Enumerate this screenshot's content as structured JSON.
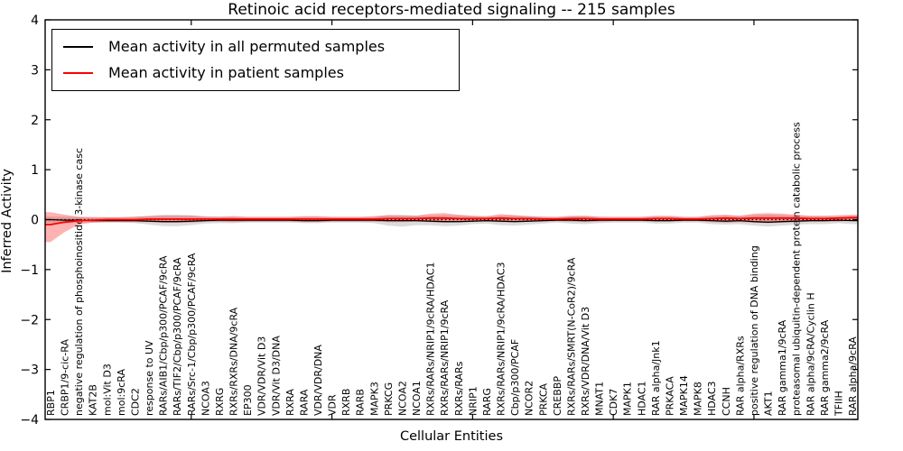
{
  "chart_data": {
    "type": "line",
    "title": "Retinoic acid receptors-mediated signaling -- 215 samples",
    "xlabel": "Cellular Entities",
    "ylabel": "Inferred Activity",
    "ylim": [
      -4,
      4
    ],
    "yticks": [
      4,
      3,
      2,
      1,
      0,
      -1,
      -2,
      -3,
      -4
    ],
    "grid": false,
    "legend_position": "upper left",
    "zero_reference_line": "dotted black line at y=0",
    "x_tick_label_rotation": 90,
    "categories": [
      "RBP1",
      "CRBP1/9-cic-RA",
      "negative regulation of phosphoinositide 3-kinase casc",
      "KAT2B",
      "mol:Vit D3",
      "mol:9cRA",
      "CDC2",
      "response to UV",
      "RARs/AIB1/Cbp/p300/PCAF/9cRA",
      "RARs/TIF2/Cbp/p300/PCAF/9cRA",
      "RARs/Src-1/Cbp/p300/PCAF/9cRA",
      "NCOA3",
      "RXRG",
      "RXRs/RXRs/DNA/9cRA",
      "EP300",
      "VDR/VDR/Vit D3",
      "VDR/Vit D3/DNA",
      "RXRA",
      "RARA",
      "VDR/VDR/DNA",
      "VDR",
      "RXRB",
      "RARB",
      "MAPK3",
      "PRKCG",
      "NCOA2",
      "NCOA1",
      "RXRs/RARs/NRIP1/9cRA/HDAC1",
      "RXRs/RARs/NRIP1/9cRA",
      "RXRs/RARs",
      "NRIP1",
      "RARG",
      "RXRs/RARs/NRIP1/9cRA/HDAC3",
      "Cbp/p300/PCAF",
      "NCOR2",
      "PRKCA",
      "CREBBP",
      "RXRs/RARs/SMRT(N-CoR2)/9cRA",
      "RXRs/VDR/DNA/Vit D3",
      "MNAT1",
      "CDK7",
      "MAPK1",
      "HDAC1",
      "RAR alpha/Jnk1",
      "PRKACA",
      "MAPK14",
      "MAPK8",
      "HDAC3",
      "CCNH",
      "RAR alpha/RXRs",
      "positive regulation of DNA binding",
      "AKT1",
      "RAR gamma1/9cRA",
      "proteasomal ubiquitin-dependent protein catabolic process",
      "RAR alpha/9cRA/Cyclin H",
      "RAR gamma2/9cRA",
      "TFIIH",
      "RAR alpha/9cRA"
    ],
    "series": [
      {
        "name": "Mean activity in all permuted samples",
        "color": "#000000",
        "band_color": "#999999",
        "band_opacity": 0.35,
        "values": [
          0,
          -0.01,
          -0.01,
          -0.02,
          -0.02,
          -0.02,
          -0.02,
          -0.03,
          -0.04,
          -0.04,
          -0.03,
          -0.02,
          -0.01,
          -0.01,
          -0.01,
          -0.01,
          -0.01,
          -0.01,
          -0.02,
          -0.02,
          -0.01,
          -0.01,
          -0.01,
          -0.01,
          -0.02,
          -0.02,
          -0.02,
          -0.03,
          -0.04,
          -0.04,
          -0.03,
          -0.02,
          -0.03,
          -0.04,
          -0.03,
          -0.02,
          -0.01,
          -0.01,
          -0.02,
          -0.01,
          -0.01,
          -0.01,
          -0.01,
          -0.02,
          -0.02,
          -0.01,
          -0.01,
          -0.02,
          -0.03,
          -0.02,
          -0.04,
          -0.05,
          -0.04,
          -0.03,
          -0.02,
          -0.02,
          -0.01,
          -0.02
        ],
        "band_upper": [
          0.06,
          0.06,
          0.05,
          0.05,
          0.05,
          0.05,
          0.06,
          0.08,
          0.1,
          0.1,
          0.09,
          0.07,
          0.06,
          0.06,
          0.05,
          0.05,
          0.05,
          0.05,
          0.06,
          0.06,
          0.05,
          0.05,
          0.05,
          0.06,
          0.09,
          0.1,
          0.08,
          0.08,
          0.09,
          0.08,
          0.07,
          0.06,
          0.08,
          0.08,
          0.07,
          0.06,
          0.05,
          0.06,
          0.07,
          0.06,
          0.05,
          0.05,
          0.05,
          0.06,
          0.06,
          0.05,
          0.05,
          0.07,
          0.08,
          0.07,
          0.09,
          0.1,
          0.09,
          0.08,
          0.07,
          0.07,
          0.06,
          0.07
        ],
        "band_lower": [
          -0.07,
          -0.07,
          -0.06,
          -0.06,
          -0.06,
          -0.06,
          -0.07,
          -0.1,
          -0.13,
          -0.13,
          -0.11,
          -0.08,
          -0.07,
          -0.07,
          -0.06,
          -0.06,
          -0.06,
          -0.06,
          -0.07,
          -0.07,
          -0.06,
          -0.06,
          -0.06,
          -0.07,
          -0.12,
          -0.14,
          -0.11,
          -0.11,
          -0.13,
          -0.12,
          -0.09,
          -0.08,
          -0.11,
          -0.12,
          -0.1,
          -0.08,
          -0.06,
          -0.08,
          -0.09,
          -0.07,
          -0.06,
          -0.06,
          -0.06,
          -0.08,
          -0.08,
          -0.06,
          -0.06,
          -0.09,
          -0.1,
          -0.09,
          -0.12,
          -0.14,
          -0.12,
          -0.1,
          -0.09,
          -0.09,
          -0.07,
          -0.09
        ]
      },
      {
        "name": "Mean activity in patient samples",
        "color": "#ff0000",
        "band_color": "#ff0000",
        "band_opacity": 0.3,
        "values": [
          -0.1,
          -0.05,
          -0.02,
          -0.01,
          0,
          0,
          0,
          0.01,
          0.01,
          0.01,
          0.01,
          0.01,
          0.01,
          0.01,
          0.01,
          0.01,
          0.01,
          0.01,
          0.01,
          0.01,
          0.01,
          0.01,
          0.01,
          0.01,
          0.02,
          0.02,
          0.02,
          0.03,
          0.03,
          0.02,
          0.02,
          0.02,
          0.03,
          0.02,
          0.02,
          0.01,
          0.01,
          0.02,
          0.02,
          0.01,
          0.01,
          0.01,
          0.01,
          0.02,
          0.02,
          0.01,
          0.01,
          0.02,
          0.03,
          0.02,
          0.03,
          0.03,
          0.03,
          0.03,
          0.02,
          0.02,
          0.03,
          0.04
        ],
        "band_upper": [
          0.15,
          0.1,
          0.06,
          0.05,
          0.05,
          0.05,
          0.06,
          0.07,
          0.08,
          0.08,
          0.08,
          0.06,
          0.06,
          0.07,
          0.06,
          0.06,
          0.06,
          0.06,
          0.07,
          0.07,
          0.06,
          0.06,
          0.06,
          0.07,
          0.09,
          0.08,
          0.08,
          0.12,
          0.13,
          0.1,
          0.08,
          0.07,
          0.11,
          0.09,
          0.07,
          0.06,
          0.06,
          0.08,
          0.08,
          0.06,
          0.06,
          0.06,
          0.06,
          0.08,
          0.08,
          0.06,
          0.06,
          0.09,
          0.1,
          0.08,
          0.12,
          0.13,
          0.12,
          0.1,
          0.08,
          0.08,
          0.09,
          0.1
        ],
        "band_lower": [
          -0.45,
          -0.25,
          -0.1,
          -0.06,
          -0.05,
          -0.05,
          -0.05,
          -0.05,
          -0.06,
          -0.06,
          -0.06,
          -0.04,
          -0.04,
          -0.05,
          -0.04,
          -0.04,
          -0.04,
          -0.04,
          -0.05,
          -0.05,
          -0.04,
          -0.04,
          -0.04,
          -0.04,
          -0.05,
          -0.05,
          -0.04,
          -0.05,
          -0.06,
          -0.05,
          -0.04,
          -0.04,
          -0.05,
          -0.05,
          -0.04,
          -0.04,
          -0.03,
          -0.04,
          -0.05,
          -0.04,
          -0.03,
          -0.03,
          -0.03,
          -0.04,
          -0.04,
          -0.03,
          -0.03,
          -0.05,
          -0.06,
          -0.05,
          -0.06,
          -0.07,
          -0.06,
          -0.05,
          -0.04,
          -0.04,
          -0.04,
          -0.02
        ]
      }
    ]
  }
}
